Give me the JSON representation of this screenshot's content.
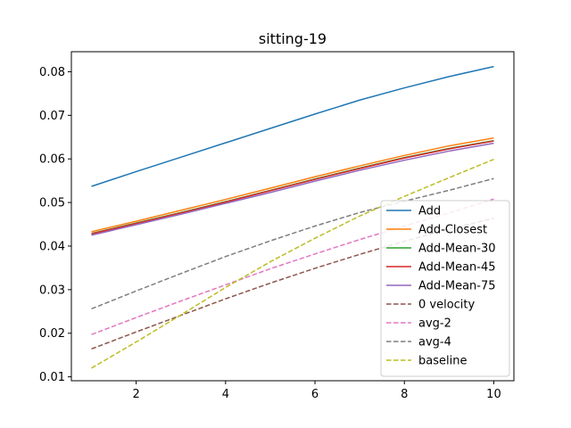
{
  "chart_data": {
    "type": "line",
    "title": "sitting-19",
    "xlabel": "",
    "ylabel": "",
    "xlim": [
      0.55,
      10.45
    ],
    "ylim": [
      0.0091,
      0.0846
    ],
    "xticks": [
      2,
      4,
      6,
      8,
      10
    ],
    "yticks": [
      0.01,
      0.02,
      0.03,
      0.04,
      0.05,
      0.06,
      0.07,
      0.08
    ],
    "grid": false,
    "legend_position": "lower-right",
    "x": [
      1,
      2,
      3,
      4,
      5,
      6,
      7,
      8,
      9,
      10
    ],
    "series": [
      {
        "name": "Add",
        "color": "#1f77b4",
        "dash": "solid",
        "values": [
          0.0537,
          0.0571,
          0.0604,
          0.0637,
          0.067,
          0.0703,
          0.0735,
          0.0763,
          0.0789,
          0.0812
        ]
      },
      {
        "name": "Add-Closest",
        "color": "#ff7f0e",
        "dash": "solid",
        "values": [
          0.0433,
          0.0457,
          0.0482,
          0.0507,
          0.0533,
          0.0559,
          0.0584,
          0.0608,
          0.063,
          0.0648
        ]
      },
      {
        "name": "Add-Mean-30",
        "color": "#2ca02c",
        "dash": "solid",
        "values": [
          0.0429,
          0.0453,
          0.0477,
          0.0502,
          0.0528,
          0.0554,
          0.0579,
          0.0603,
          0.0624,
          0.0642
        ]
      },
      {
        "name": "Add-Mean-45",
        "color": "#d62728",
        "dash": "solid",
        "values": [
          0.0428,
          0.0452,
          0.0476,
          0.0501,
          0.0527,
          0.0553,
          0.0578,
          0.0602,
          0.0623,
          0.0641
        ]
      },
      {
        "name": "Add-Mean-75",
        "color": "#9467bd",
        "dash": "solid",
        "values": [
          0.0425,
          0.0449,
          0.0473,
          0.0498,
          0.0523,
          0.0549,
          0.0574,
          0.0597,
          0.0618,
          0.0636
        ]
      },
      {
        "name": "0 velocity",
        "color": "#8c564b",
        "dash": "dashed",
        "values": [
          0.0164,
          0.0203,
          0.0241,
          0.0279,
          0.0315,
          0.0349,
          0.0381,
          0.0411,
          0.0439,
          0.0464
        ]
      },
      {
        "name": "avg-2",
        "color": "#e377c2",
        "dash": "dashed",
        "values": [
          0.0197,
          0.0236,
          0.0274,
          0.0311,
          0.0348,
          0.0382,
          0.0415,
          0.0446,
          0.0476,
          0.0508
        ]
      },
      {
        "name": "avg-4",
        "color": "#7f7f7f",
        "dash": "dashed",
        "values": [
          0.0256,
          0.0297,
          0.0337,
          0.0376,
          0.0412,
          0.0446,
          0.0477,
          0.0503,
          0.0528,
          0.0555
        ]
      },
      {
        "name": "baseline",
        "color": "#bcbd22",
        "dash": "dashed",
        "values": [
          0.012,
          0.018,
          0.0242,
          0.0305,
          0.0364,
          0.0418,
          0.0469,
          0.0514,
          0.0557,
          0.0599
        ]
      }
    ]
  }
}
